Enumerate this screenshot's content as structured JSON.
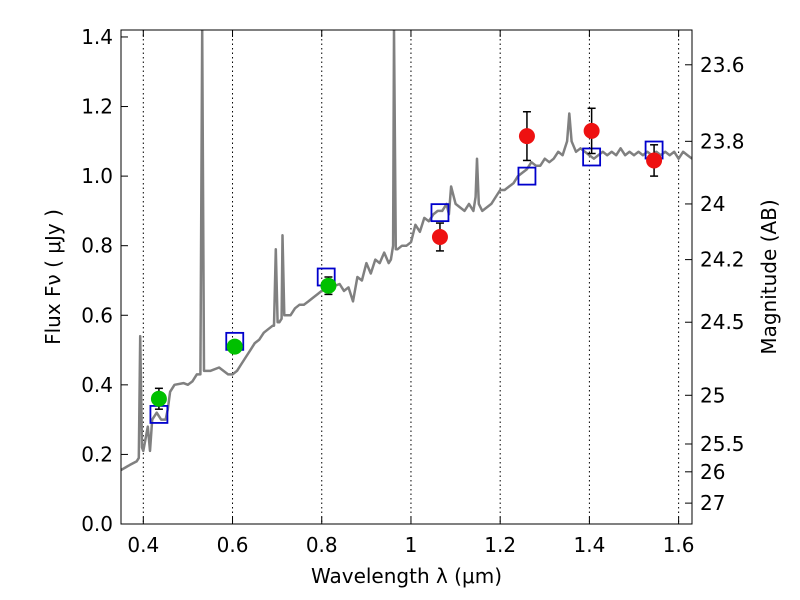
{
  "chart_data": {
    "type": "scatter",
    "xlabel": "Wavelength  λ (μm)",
    "ylabel": "Flux  Fν  ( μJy )",
    "ylabel_right": "Magnitude (AB)",
    "xlim": [
      0.35,
      1.63
    ],
    "ylim": [
      0.0,
      1.42
    ],
    "x_ticks": [
      0.4,
      0.6,
      0.8,
      1.0,
      1.2,
      1.4,
      1.6
    ],
    "x_tick_labels": [
      "0.4",
      "0.6",
      "0.8",
      "1",
      "1.2",
      "1.4",
      "1.6"
    ],
    "y_ticks": [
      0.0,
      0.2,
      0.4,
      0.6,
      0.8,
      1.0,
      1.2,
      1.4
    ],
    "y_tick_labels": [
      "0.0",
      "0.2",
      "0.4",
      "0.6",
      "0.8",
      "1.0",
      "1.2",
      "1.4"
    ],
    "right_ticks": [
      {
        "flux": 1.32,
        "label": "23.6"
      },
      {
        "flux": 1.1,
        "label": "23.8"
      },
      {
        "flux": 0.92,
        "label": "24"
      },
      {
        "flux": 0.76,
        "label": "24.2"
      },
      {
        "flux": 0.58,
        "label": "24.5"
      },
      {
        "flux": 0.37,
        "label": "25"
      },
      {
        "flux": 0.23,
        "label": "25.5"
      },
      {
        "flux": 0.15,
        "label": "26"
      },
      {
        "flux": 0.06,
        "label": "27"
      }
    ],
    "grid": "vertical dotted",
    "series": [
      {
        "kind": "spectrum",
        "color": "#808080",
        "points": [
          [
            0.35,
            0.155
          ],
          [
            0.37,
            0.17
          ],
          [
            0.385,
            0.18
          ],
          [
            0.39,
            0.19
          ],
          [
            0.393,
            0.54
          ],
          [
            0.397,
            0.22
          ],
          [
            0.4,
            0.21
          ],
          [
            0.41,
            0.28
          ],
          [
            0.415,
            0.21
          ],
          [
            0.42,
            0.3
          ],
          [
            0.43,
            0.32
          ],
          [
            0.44,
            0.3
          ],
          [
            0.45,
            0.3
          ],
          [
            0.455,
            0.33
          ],
          [
            0.46,
            0.38
          ],
          [
            0.47,
            0.4
          ],
          [
            0.49,
            0.405
          ],
          [
            0.5,
            0.4
          ],
          [
            0.51,
            0.41
          ],
          [
            0.52,
            0.43
          ],
          [
            0.528,
            0.43
          ],
          [
            0.532,
            1.42
          ],
          [
            0.536,
            0.44
          ],
          [
            0.55,
            0.44
          ],
          [
            0.57,
            0.45
          ],
          [
            0.59,
            0.43
          ],
          [
            0.6,
            0.43
          ],
          [
            0.61,
            0.44
          ],
          [
            0.62,
            0.46
          ],
          [
            0.63,
            0.48
          ],
          [
            0.64,
            0.5
          ],
          [
            0.65,
            0.52
          ],
          [
            0.66,
            0.53
          ],
          [
            0.67,
            0.55
          ],
          [
            0.68,
            0.56
          ],
          [
            0.69,
            0.57
          ],
          [
            0.693,
            0.57
          ],
          [
            0.697,
            0.79
          ],
          [
            0.701,
            0.58
          ],
          [
            0.705,
            0.58
          ],
          [
            0.71,
            0.59
          ],
          [
            0.712,
            0.83
          ],
          [
            0.716,
            0.6
          ],
          [
            0.72,
            0.6
          ],
          [
            0.73,
            0.6
          ],
          [
            0.74,
            0.62
          ],
          [
            0.75,
            0.63
          ],
          [
            0.76,
            0.63
          ],
          [
            0.77,
            0.64
          ],
          [
            0.78,
            0.65
          ],
          [
            0.79,
            0.66
          ],
          [
            0.8,
            0.67
          ],
          [
            0.82,
            0.68
          ],
          [
            0.84,
            0.69
          ],
          [
            0.85,
            0.67
          ],
          [
            0.86,
            0.68
          ],
          [
            0.87,
            0.64
          ],
          [
            0.88,
            0.71
          ],
          [
            0.89,
            0.7
          ],
          [
            0.9,
            0.75
          ],
          [
            0.91,
            0.72
          ],
          [
            0.92,
            0.76
          ],
          [
            0.93,
            0.75
          ],
          [
            0.94,
            0.78
          ],
          [
            0.95,
            0.75
          ],
          [
            0.955,
            0.76
          ],
          [
            0.96,
            0.8
          ],
          [
            0.962,
            1.42
          ],
          [
            0.966,
            0.79
          ],
          [
            0.97,
            0.79
          ],
          [
            0.98,
            0.8
          ],
          [
            0.99,
            0.8
          ],
          [
            1.0,
            0.81
          ],
          [
            1.01,
            0.86
          ],
          [
            1.02,
            0.84
          ],
          [
            1.03,
            0.88
          ],
          [
            1.04,
            0.87
          ],
          [
            1.05,
            0.89
          ],
          [
            1.06,
            0.9
          ],
          [
            1.07,
            0.9
          ],
          [
            1.08,
            0.92
          ],
          [
            1.085,
            0.89
          ],
          [
            1.09,
            0.97
          ],
          [
            1.1,
            0.92
          ],
          [
            1.11,
            0.91
          ],
          [
            1.12,
            0.9
          ],
          [
            1.13,
            0.92
          ],
          [
            1.14,
            0.9
          ],
          [
            1.145,
            0.94
          ],
          [
            1.148,
            1.05
          ],
          [
            1.152,
            0.92
          ],
          [
            1.16,
            0.9
          ],
          [
            1.17,
            0.91
          ],
          [
            1.18,
            0.92
          ],
          [
            1.19,
            0.94
          ],
          [
            1.2,
            0.96
          ],
          [
            1.21,
            0.96
          ],
          [
            1.22,
            0.97
          ],
          [
            1.23,
            0.98
          ],
          [
            1.24,
            1.0
          ],
          [
            1.25,
            1.01
          ],
          [
            1.26,
            1.02
          ],
          [
            1.27,
            1.04
          ],
          [
            1.28,
            1.03
          ],
          [
            1.29,
            1.03
          ],
          [
            1.3,
            1.05
          ],
          [
            1.31,
            1.04
          ],
          [
            1.32,
            1.05
          ],
          [
            1.33,
            1.07
          ],
          [
            1.34,
            1.06
          ],
          [
            1.35,
            1.1
          ],
          [
            1.355,
            1.18
          ],
          [
            1.36,
            1.1
          ],
          [
            1.37,
            1.07
          ],
          [
            1.38,
            1.08
          ],
          [
            1.39,
            1.07
          ],
          [
            1.4,
            1.06
          ],
          [
            1.41,
            1.05
          ],
          [
            1.42,
            1.06
          ],
          [
            1.43,
            1.07
          ],
          [
            1.44,
            1.06
          ],
          [
            1.45,
            1.07
          ],
          [
            1.46,
            1.06
          ],
          [
            1.47,
            1.08
          ],
          [
            1.48,
            1.06
          ],
          [
            1.49,
            1.07
          ],
          [
            1.5,
            1.06
          ],
          [
            1.51,
            1.07
          ],
          [
            1.52,
            1.06
          ],
          [
            1.53,
            1.07
          ],
          [
            1.54,
            1.06
          ],
          [
            1.55,
            1.07
          ],
          [
            1.56,
            1.06
          ],
          [
            1.57,
            1.07
          ],
          [
            1.58,
            1.06
          ],
          [
            1.59,
            1.07
          ],
          [
            1.6,
            1.05
          ],
          [
            1.61,
            1.07
          ],
          [
            1.62,
            1.06
          ],
          [
            1.63,
            1.05
          ]
        ]
      },
      {
        "kind": "points",
        "marker": "circle",
        "color": "#00c000",
        "points": [
          {
            "x": 0.435,
            "y": 0.36,
            "err": 0.03
          },
          {
            "x": 0.605,
            "y": 0.51,
            "err": 0.012
          },
          {
            "x": 0.815,
            "y": 0.685,
            "err": 0.025
          }
        ]
      },
      {
        "kind": "points",
        "marker": "circle",
        "color": "#ee1111",
        "points": [
          {
            "x": 1.065,
            "y": 0.825,
            "err": 0.04
          },
          {
            "x": 1.26,
            "y": 1.115,
            "err": 0.07
          },
          {
            "x": 1.405,
            "y": 1.13,
            "err": 0.065
          },
          {
            "x": 1.545,
            "y": 1.045,
            "err": 0.045
          }
        ]
      },
      {
        "kind": "points",
        "marker": "open-square",
        "color": "#0000cc",
        "points": [
          {
            "x": 0.435,
            "y": 0.315
          },
          {
            "x": 0.605,
            "y": 0.525
          },
          {
            "x": 0.81,
            "y": 0.71
          },
          {
            "x": 1.065,
            "y": 0.895
          },
          {
            "x": 1.26,
            "y": 1.0
          },
          {
            "x": 1.405,
            "y": 1.055
          },
          {
            "x": 1.545,
            "y": 1.075
          }
        ]
      }
    ]
  }
}
